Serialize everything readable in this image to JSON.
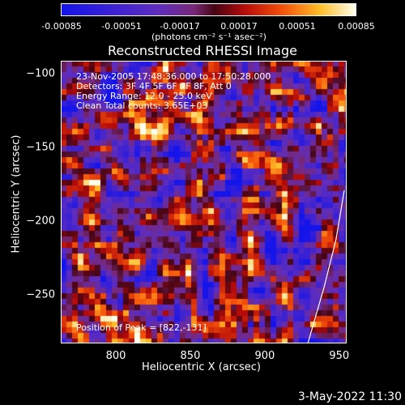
{
  "colorbar": {
    "ticks": [
      "-0.00085",
      "-0.00051",
      "-0.00017",
      "0.00017",
      "0.00051",
      "0.00085"
    ],
    "unit": "(photons cm⁻² s⁻¹ asec⁻²)"
  },
  "chart_data": {
    "type": "heatmap",
    "title": "Reconstructed RHESSI Image",
    "xlabel": "Heliocentric X (arcsec)",
    "ylabel": "Heliocentric Y (arcsec)",
    "xlim": [
      763,
      955
    ],
    "ylim": [
      -283,
      -91
    ],
    "xticks": [
      800,
      850,
      900,
      950
    ],
    "yticks": [
      -100,
      -150,
      -200,
      -250
    ],
    "colorbar_range": [
      -0.00085,
      0.00085
    ],
    "annotations": [
      "23-Nov-2005 17:48:36.000 to 17:50:28.000",
      "Detectors: 3F 4F 5F 6F 7F 8F, Att 0",
      "Energy Range: 12.0 - 25.0 keV",
      "Clean      Total counts: 3.65E+03",
      "Position of Peak = [822,-131]"
    ],
    "peak": {
      "x": 822,
      "y": -131
    }
  },
  "footer": {
    "timestamp": "3-May-2022 11:30"
  }
}
